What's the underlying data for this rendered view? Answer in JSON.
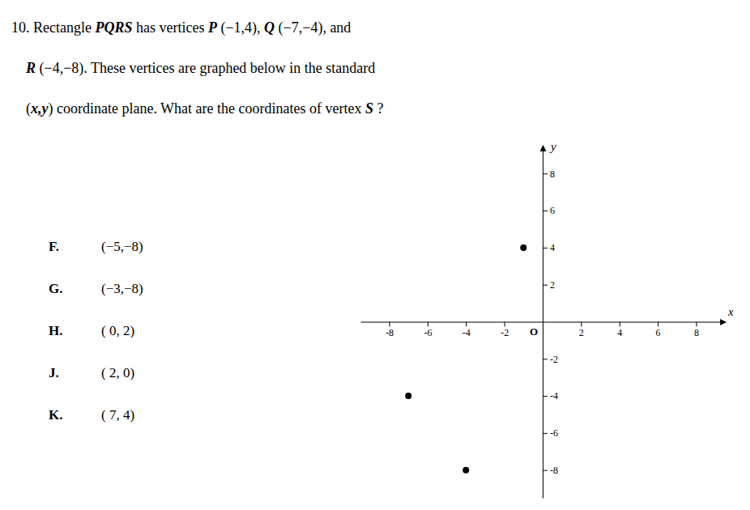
{
  "chart_data": {
    "type": "scatter",
    "title": [
      [
        "10. Rectangle ",
        "PQRS",
        " has vertices ",
        "P",
        " (−1,4), ",
        "Q",
        " (−7,−4), and"
      ],
      [
        "    ",
        "R",
        " (−4,−8). These vertices are graphed below in the standard"
      ],
      [
        "    (",
        "x,y",
        ") coordinate plane. What are the coordinates of vertex ",
        "S",
        " ?"
      ]
    ],
    "x": [
      -1,
      -7,
      -4
    ],
    "y": [
      4,
      -4,
      -8
    ],
    "color": "#000000",
    "xlim": [
      -9.5,
      9.5
    ],
    "ylim": [
      -9.5,
      9.5
    ],
    "xticks": [
      -8,
      -6,
      -4,
      -2,
      2,
      4,
      6,
      8
    ],
    "yticks": [
      -8,
      -6,
      -4,
      -2,
      2,
      4,
      6,
      8
    ],
    "xlabel": "x",
    "ylabel": "y",
    "origin_label": "O",
    "annotations": [
      [
        "F.",
        "(−5,−8)"
      ],
      [
        "G.",
        "(−3,−8)"
      ],
      [
        "H.",
        "( 0, 2)"
      ],
      [
        "J.",
        "( 2, 0)"
      ],
      [
        "K.",
        "( 7, 4)"
      ]
    ],
    "grid": false
  }
}
